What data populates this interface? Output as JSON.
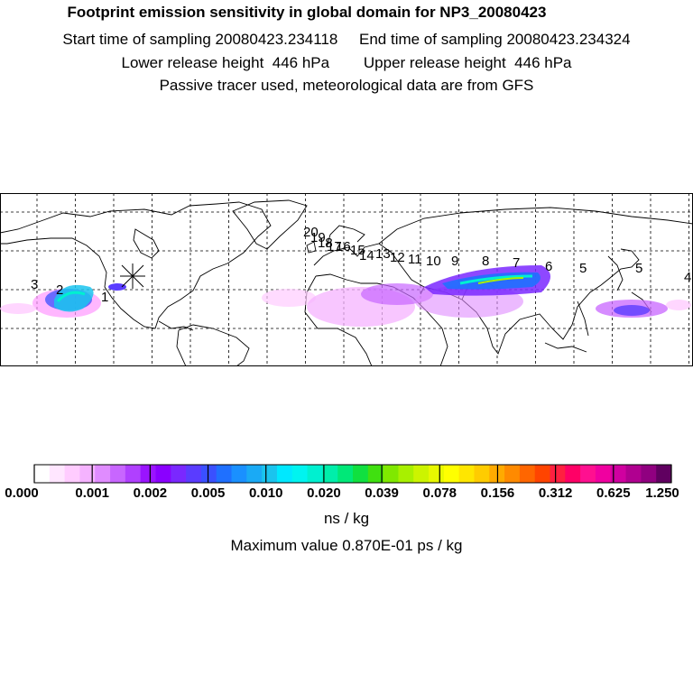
{
  "header": {
    "title": "Footprint emission sensitivity in global domain for NP3_20080423",
    "start_label": "Start time of sampling 20080423.234118",
    "end_label": "End time of sampling 20080423.234324",
    "lower_label": "Lower release height  446 hPa",
    "upper_label": "Upper release height  446 hPa",
    "note": "Passive tracer used, meteorological data are from GFS"
  },
  "map": {
    "trajectory_labels": [
      "3",
      "2",
      "1",
      "20",
      "19",
      "18",
      "17",
      "16",
      "15",
      "14",
      "13",
      "12",
      "11",
      "10",
      "9",
      "8",
      "7",
      "6",
      "5",
      "4"
    ],
    "release_marker": "release-point-star-icon",
    "grid_visible": true
  },
  "colorbar": {
    "tick_labels": [
      "0.000",
      "0.001",
      "0.002",
      "0.005",
      "0.010",
      "0.020",
      "0.039",
      "0.078",
      "0.156",
      "0.312",
      "0.625",
      "1.250"
    ],
    "colors": [
      "#ffffff",
      "#ffe6ff",
      "#ffccff",
      "#f5b3ff",
      "#e08cff",
      "#c866ff",
      "#b040ff",
      "#9a14ff",
      "#8a00ff",
      "#7a28ff",
      "#5a3cff",
      "#3a50ff",
      "#1f70ff",
      "#1a90ff",
      "#1aaaf5",
      "#1ac4ee",
      "#00e8ff",
      "#00f4f0",
      "#00f0d0",
      "#00eeaa",
      "#00e878",
      "#10e040",
      "#40e010",
      "#80e800",
      "#a8f000",
      "#ccf400",
      "#e8f800",
      "#ffff00",
      "#ffe600",
      "#ffcc00",
      "#ffaa00",
      "#ff8a00",
      "#ff6600",
      "#ff4400",
      "#ff2040",
      "#ff0066",
      "#ff1090",
      "#f000a0",
      "#d000a0",
      "#b00090",
      "#900080",
      "#600060"
    ],
    "unit": "ns / kg",
    "max_value": "Maximum value  0.870E-01 ps / kg"
  }
}
